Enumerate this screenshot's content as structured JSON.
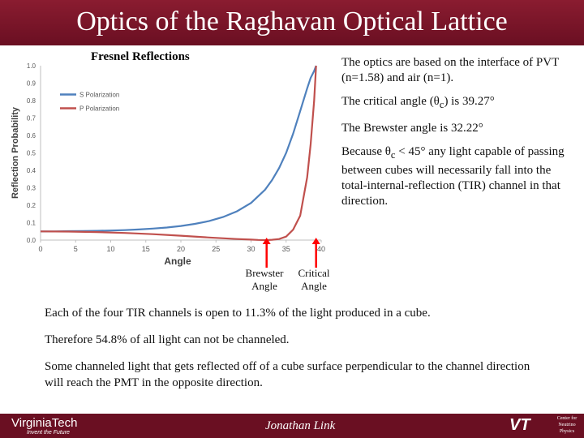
{
  "header": {
    "title": "Optics of the Raghavan Optical Lattice"
  },
  "chart_data": {
    "type": "line",
    "title": "Fresnel Reflections",
    "xlabel": "Angle",
    "ylabel": "Reflection Probability",
    "xlim": [
      0,
      40
    ],
    "ylim": [
      0,
      1.0
    ],
    "xticks": [
      "0",
      "5",
      "10",
      "15",
      "20",
      "25",
      "30",
      "35",
      "40"
    ],
    "yticks": [
      "0.0",
      "0.1",
      "0.2",
      "0.3",
      "0.4",
      "0.5",
      "0.6",
      "0.7",
      "0.8",
      "0.9",
      "1.0"
    ],
    "legend_position": "top-left",
    "series": [
      {
        "name": "S Polarization",
        "color": "#4f81bd",
        "x": [
          0,
          2,
          4,
          6,
          8,
          10,
          12,
          14,
          16,
          18,
          20,
          22,
          24,
          26,
          28,
          30,
          32,
          33,
          34,
          35,
          36,
          37,
          38,
          38.5,
          39,
          39.27
        ],
        "y": [
          0.05,
          0.05,
          0.051,
          0.052,
          0.053,
          0.055,
          0.057,
          0.061,
          0.066,
          0.072,
          0.081,
          0.093,
          0.109,
          0.132,
          0.165,
          0.213,
          0.289,
          0.344,
          0.413,
          0.5,
          0.61,
          0.74,
          0.87,
          0.93,
          0.97,
          1.0
        ]
      },
      {
        "name": "P Polarization",
        "color": "#c0504d",
        "x": [
          0,
          4,
          8,
          12,
          16,
          20,
          24,
          28,
          30,
          31,
          32.22,
          33,
          34,
          35,
          36,
          37,
          38,
          38.5,
          39,
          39.27
        ],
        "y": [
          0.05,
          0.049,
          0.046,
          0.041,
          0.034,
          0.025,
          0.015,
          0.006,
          0.003,
          0.001,
          0.0,
          0.002,
          0.006,
          0.02,
          0.06,
          0.14,
          0.36,
          0.55,
          0.8,
          1.0
        ]
      }
    ]
  },
  "markers": [
    {
      "label_line1": "Brewster",
      "label_line2": "Angle",
      "angle": 32.22
    },
    {
      "label_line1": "Critical",
      "label_line2": "Angle",
      "angle": 39.27
    }
  ],
  "right_text": {
    "p1": "The optics are based on the interface of PVT (n=1.58) and air (n=1).",
    "p2_prefix": "The critical angle (θ",
    "p2_sub": "c",
    "p2_suffix": ") is 39.27°",
    "p3": "The Brewster angle is 32.22°",
    "p4_prefix": "Because θ",
    "p4_sub": "c",
    "p4_suffix": " < 45° any light capable of passing between cubes will necessarily fall into the total-internal-reflection (TIR) channel in that direction."
  },
  "bottom_text": {
    "p1": "Each of the four TIR channels is open to 11.3% of the light produced in a cube.",
    "p2": "Therefore 54.8% of all light can not be channeled.",
    "p3": "Some channeled light that gets reflected off of a cube surface perpendicular to the channel direction will reach the PMT in the opposite direction."
  },
  "footer": {
    "logo": "VirginiaTech",
    "tagline": "Invent the Future",
    "author": "Jonathan Link",
    "vt_mark": "VT",
    "center_line1": "Center for",
    "center_line2": "Neutrino",
    "center_line3": "Physics"
  }
}
